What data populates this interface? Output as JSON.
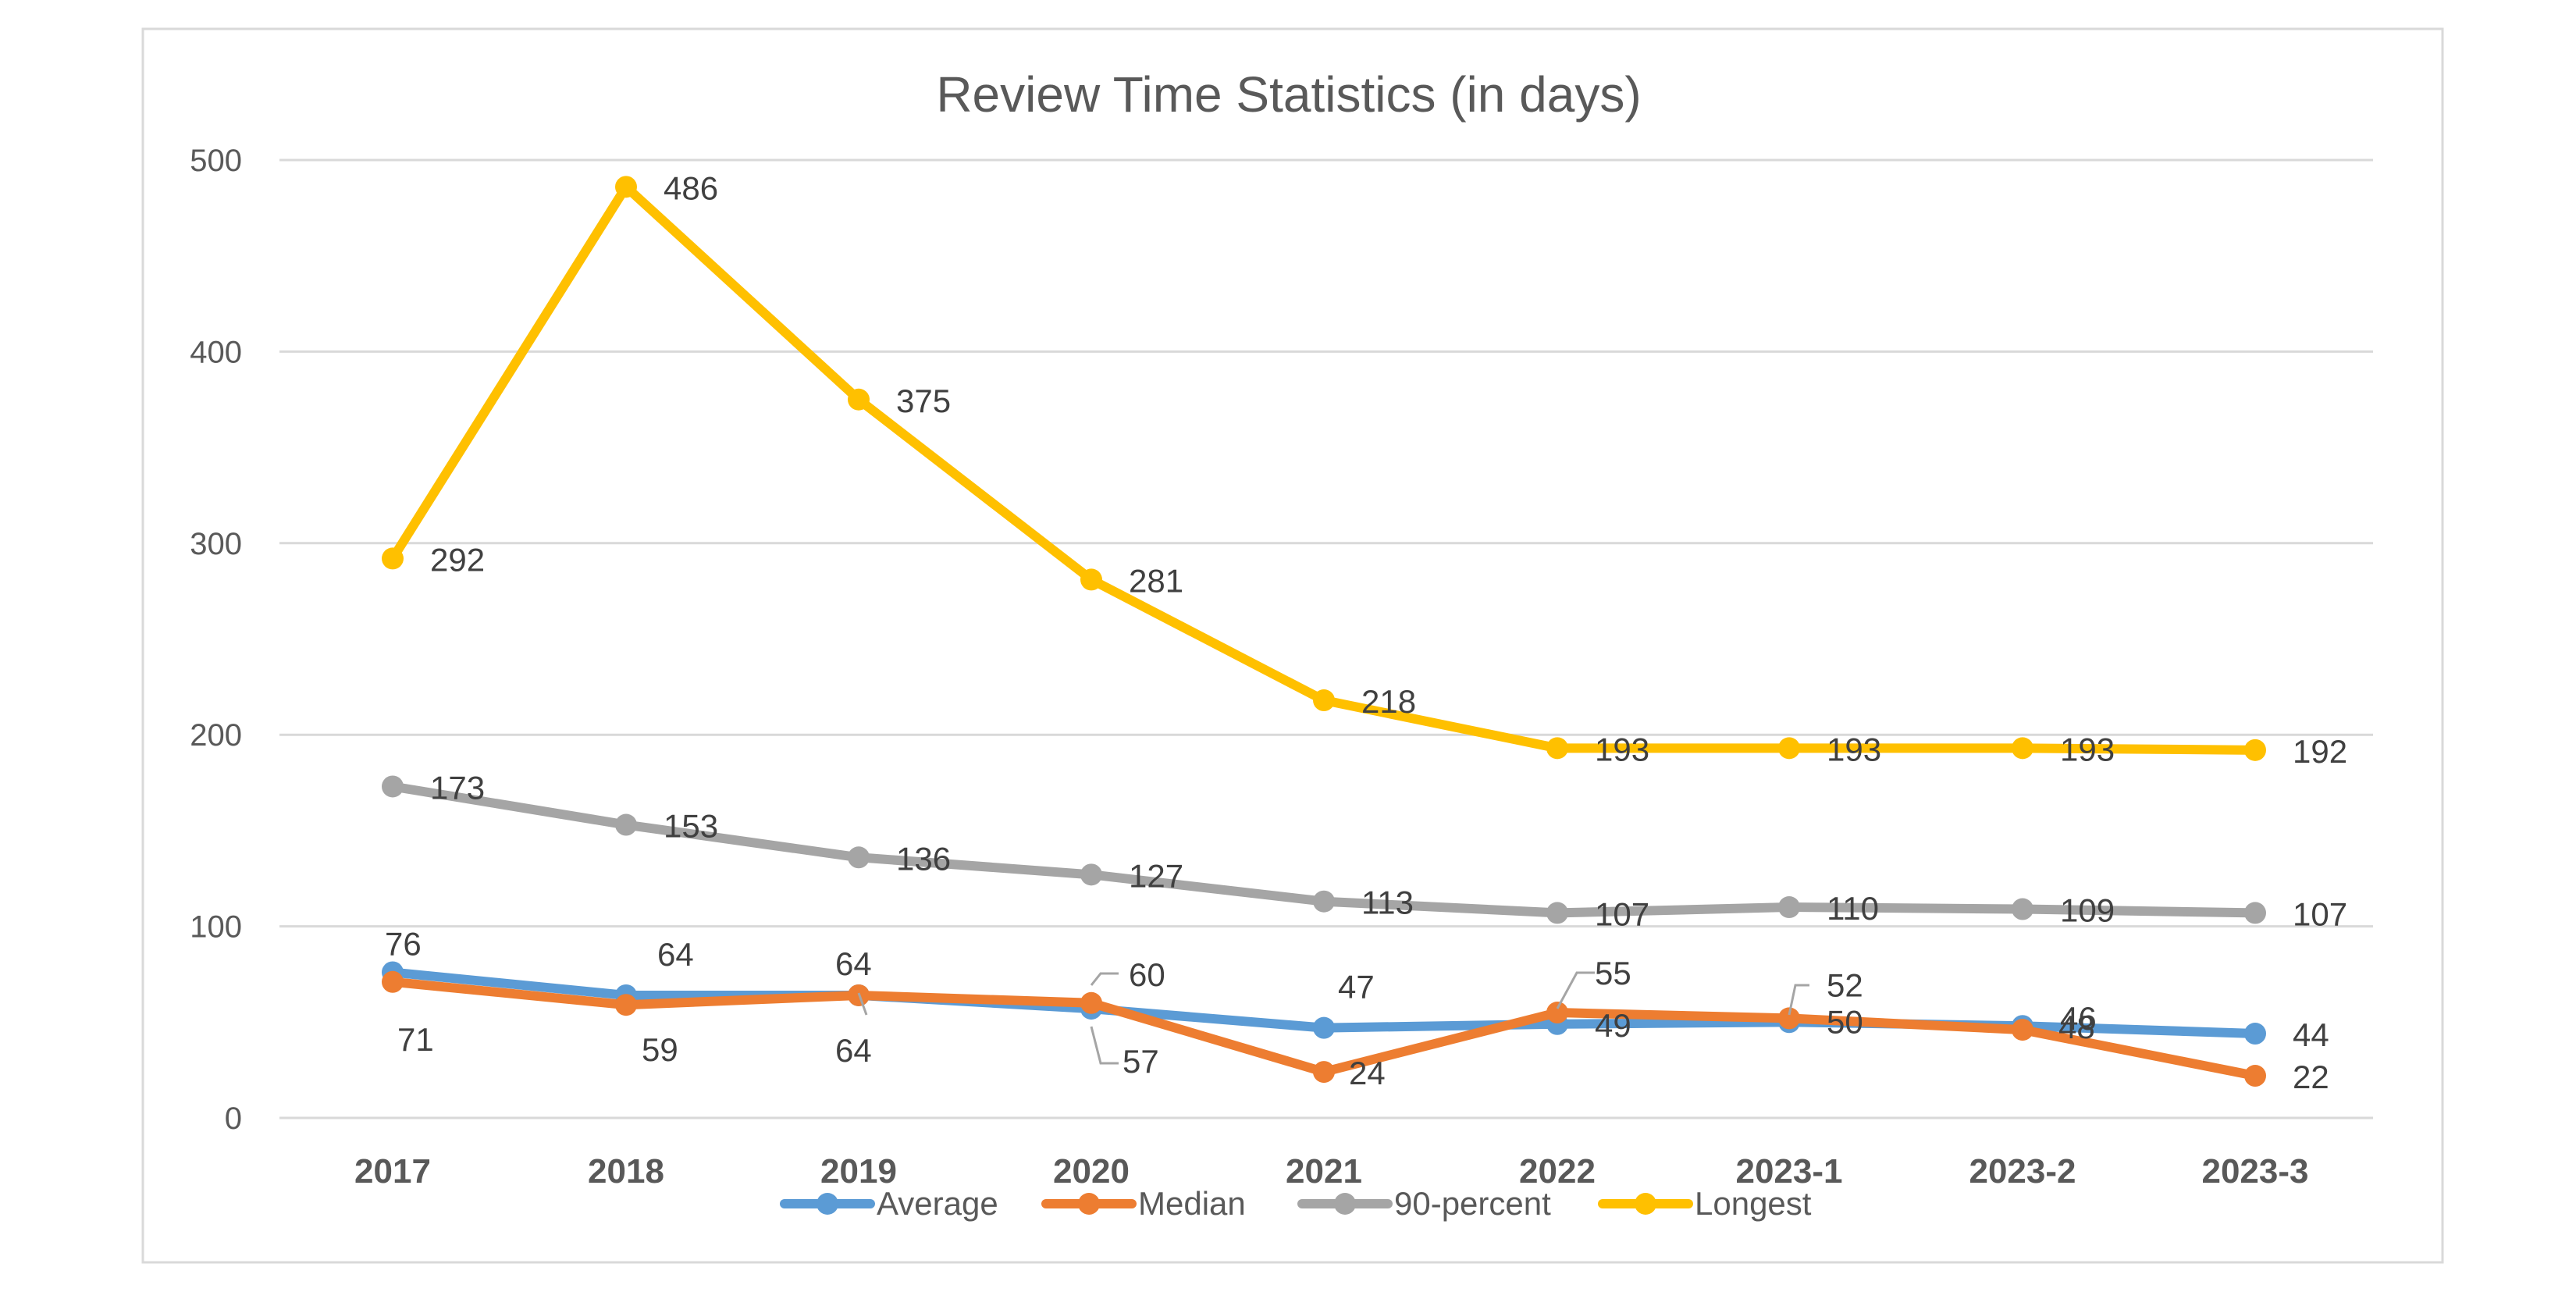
{
  "chart_data": {
    "type": "line",
    "title": "Review Time Statistics (in days)",
    "xlabel": "",
    "ylabel": "",
    "categories": [
      "2017",
      "2018",
      "2019",
      "2020",
      "2021",
      "2022",
      "2023-1",
      "2023-2",
      "2023-3"
    ],
    "ylim": [
      0,
      500
    ],
    "yticks": [
      0,
      100,
      200,
      300,
      400,
      500
    ],
    "grid": true,
    "legend_position": "bottom",
    "data_labels": true,
    "series": [
      {
        "name": "Average",
        "color": "#5B9BD5",
        "values": [
          76,
          64,
          64,
          57,
          47,
          49,
          50,
          48,
          44
        ]
      },
      {
        "name": "Median",
        "color": "#ED7D31",
        "values": [
          71,
          59,
          64,
          60,
          24,
          55,
          52,
          46,
          22
        ]
      },
      {
        "name": "90-percent",
        "color": "#A5A5A5",
        "values": [
          173,
          153,
          136,
          127,
          113,
          107,
          110,
          109,
          107
        ]
      },
      {
        "name": "Longest",
        "color": "#FFC000",
        "values": [
          292,
          486,
          375,
          281,
          218,
          193,
          193,
          193,
          192
        ]
      }
    ]
  }
}
